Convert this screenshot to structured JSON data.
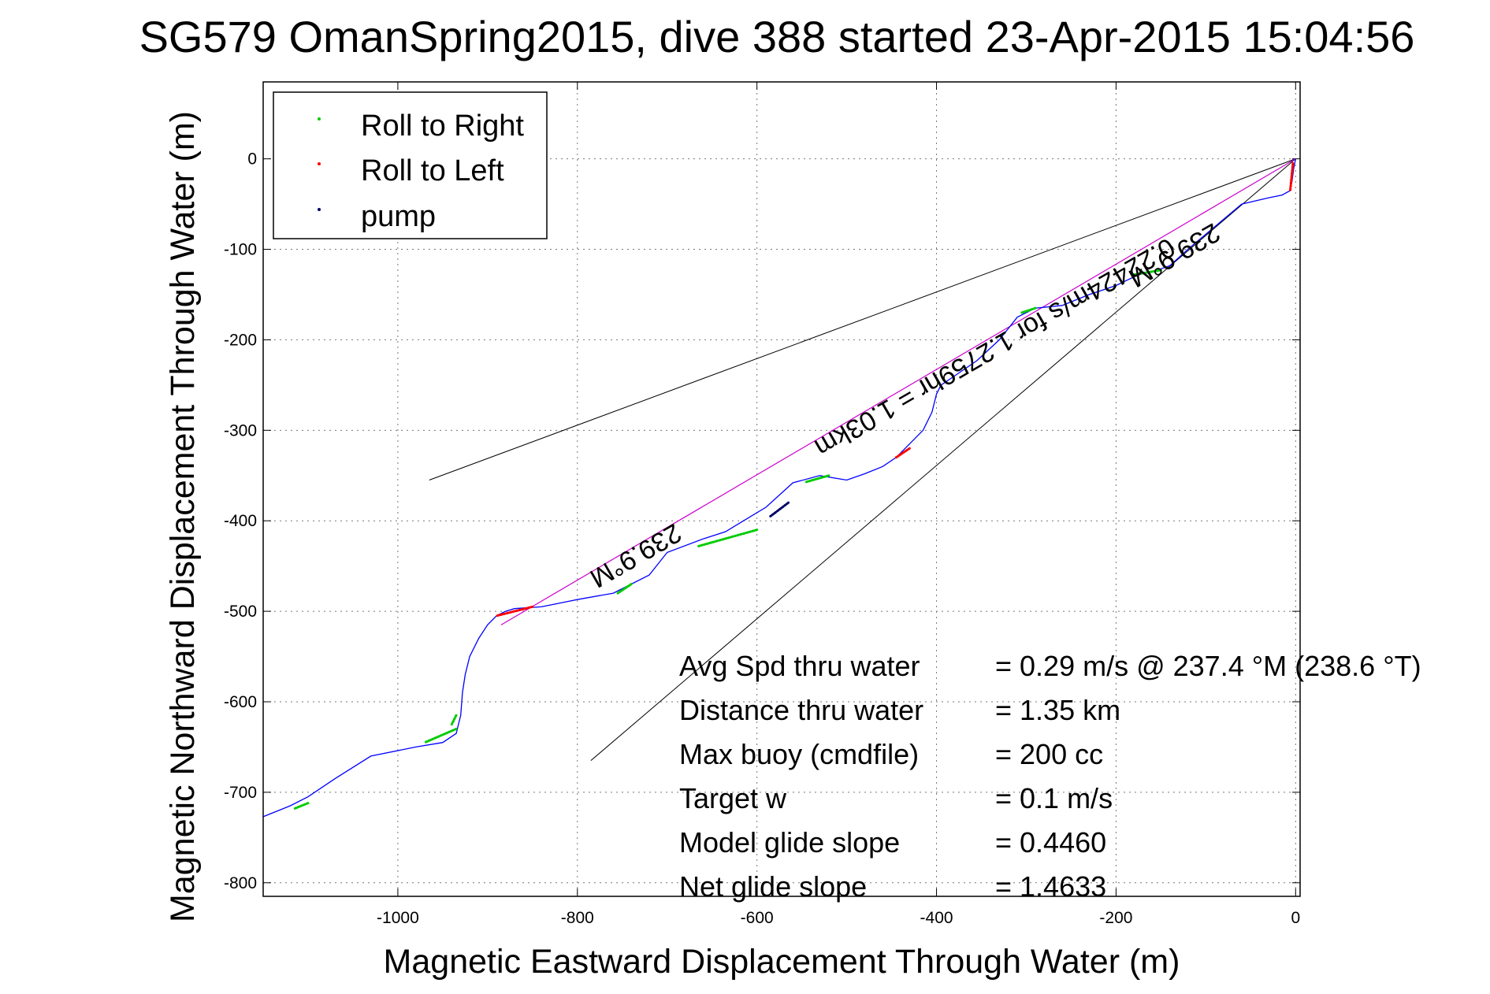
{
  "chart_data": {
    "type": "line",
    "title": "SG579 OmanSpring2015, dive 388 started 23-Apr-2015 15:04:56",
    "xlabel": "Magnetic Eastward Displacement Through Water (m)",
    "ylabel": "Magnetic Northward Displacement Through Water (m)",
    "xlim": [
      -1150,
      5
    ],
    "ylim": [
      -815,
      85
    ],
    "xticks": [
      -1000,
      -800,
      -600,
      -400,
      -200,
      0
    ],
    "yticks": [
      0,
      -100,
      -200,
      -300,
      -400,
      -500,
      -600,
      -700,
      -800
    ],
    "grid": true,
    "legend": {
      "position": "top-left",
      "items": [
        {
          "label": "Roll to Right",
          "color": "#00cc00"
        },
        {
          "label": "Roll to Left",
          "color": "#ff0000"
        },
        {
          "label": "pump",
          "color": "#000066"
        }
      ]
    },
    "colors": {
      "track": "#0000ff",
      "heading_line": "#cc00cc",
      "cone": "#000000",
      "roll_right": "#00cc00",
      "roll_left": "#ff0000",
      "pump": "#000066"
    },
    "track": {
      "x": [
        0,
        -2,
        -4,
        -6,
        -15,
        -30,
        -60,
        -90,
        -120,
        -140,
        -160,
        -175,
        -200,
        -230,
        -260,
        -290,
        -310,
        -330,
        -355,
        -380,
        -395,
        -400,
        -405,
        -415,
        -430,
        -445,
        -460,
        -480,
        -500,
        -530,
        -560,
        -590,
        -615,
        -635,
        -660,
        -700,
        -720,
        -760,
        -800,
        -840,
        -870,
        -880,
        -890,
        -900,
        -910,
        -920,
        -925,
        -928,
        -930,
        -935,
        -950,
        -980,
        -1030,
        -1070,
        -1100,
        -1120,
        -1150
      ],
      "y": [
        0,
        -10,
        -25,
        -35,
        -40,
        -43,
        -50,
        -75,
        -100,
        -118,
        -125,
        -128,
        -140,
        -150,
        -162,
        -165,
        -175,
        -200,
        -223,
        -240,
        -250,
        -260,
        -280,
        -300,
        -315,
        -330,
        -340,
        -348,
        -355,
        -350,
        -358,
        -385,
        -400,
        -412,
        -420,
        -435,
        -460,
        -480,
        -487,
        -495,
        -497,
        -500,
        -505,
        -515,
        -530,
        -550,
        -570,
        -590,
        -615,
        -635,
        -645,
        -650,
        -660,
        -685,
        -705,
        -715,
        -727
      ]
    },
    "heading_line": {
      "label": "239.9°M",
      "from": [
        0,
        0
      ],
      "to": [
        -885,
        -515
      ]
    },
    "cone_lines": [
      {
        "from": [
          0,
          0
        ],
        "to": [
          -965,
          -355
        ]
      },
      {
        "from": [
          0,
          0
        ],
        "to": [
          -785,
          -665
        ]
      }
    ],
    "roll_right_segments": [
      [
        -1100,
        -712,
        -1115,
        -718
      ],
      [
        -935,
        -630,
        -970,
        -645
      ],
      [
        -935,
        -615,
        -940,
        -625
      ],
      [
        -740,
        -470,
        -755,
        -480
      ],
      [
        -600,
        -410,
        -665,
        -428
      ],
      [
        -520,
        -350,
        -545,
        -357
      ],
      [
        -290,
        -165,
        -305,
        -170
      ],
      [
        -150,
        -123,
        -180,
        -128
      ]
    ],
    "roll_left_segments": [
      [
        -430,
        -320,
        -445,
        -330
      ],
      [
        -850,
        -495,
        -890,
        -505
      ],
      [
        -3,
        -5,
        -6,
        -35
      ]
    ],
    "pump_segments": [
      [
        -565,
        -380,
        -585,
        -395
      ]
    ],
    "annotations": [
      {
        "text": "0.22424m/s for 1.2759hr = 1.03km",
        "x": -340,
        "y": -200,
        "rotation": 150
      },
      {
        "text": "239.9°M",
        "x": -140,
        "y": -98,
        "rotation": 150
      },
      {
        "text": "239.9°M",
        "x": -740,
        "y": -430,
        "rotation": 150
      }
    ],
    "stats": [
      {
        "label": "Avg Spd thru water",
        "value": "=  0.29 m/s @ 237.4 °M (238.6 °T)"
      },
      {
        "label": "Distance thru water",
        "value": "=  1.35 km"
      },
      {
        "label": "Max buoy (cmdfile)",
        "value": "= 200 cc"
      },
      {
        "label": "Target w",
        "value": "= 0.1 m/s"
      },
      {
        "label": "Model glide slope",
        "value": "= 0.4460"
      },
      {
        "label": "Net glide slope",
        "value": "= 1.4633"
      }
    ]
  }
}
